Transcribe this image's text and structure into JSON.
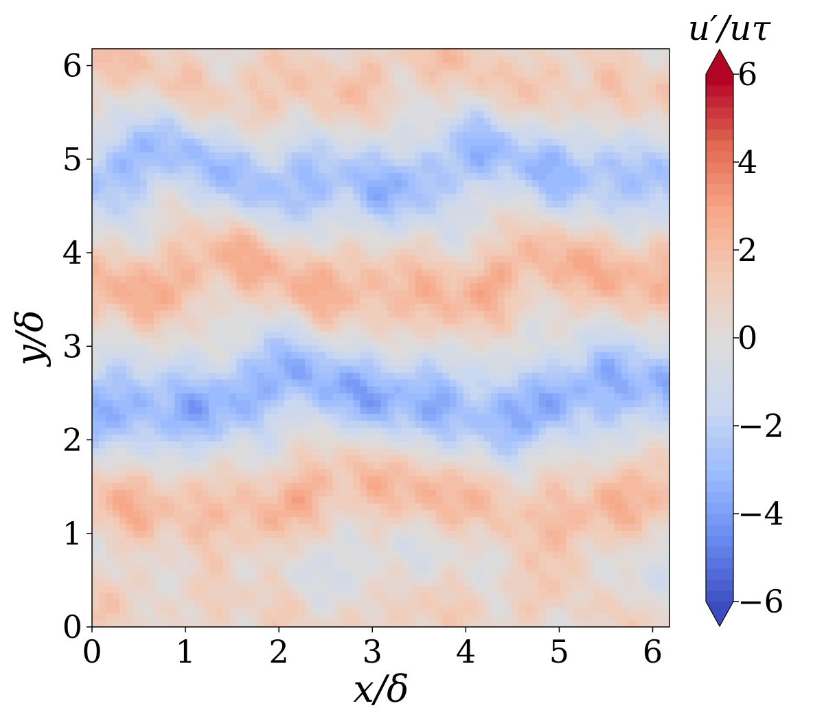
{
  "chart_data": {
    "type": "heatmap",
    "title": "",
    "xlabel": "x/δ",
    "ylabel": "y/δ",
    "xlim": [
      0,
      6.18
    ],
    "ylim": [
      0,
      6.18
    ],
    "xticks": [
      0,
      1,
      2,
      3,
      4,
      5,
      6
    ],
    "yticks": [
      0,
      1,
      2,
      3,
      4,
      5,
      6
    ],
    "colormap": "coolwarm",
    "colorbar": {
      "title": "u′/uτ",
      "range": [
        -6,
        6
      ],
      "ticks": [
        -6,
        -4,
        -2,
        0,
        2,
        4,
        6
      ],
      "tick_labels": [
        "−6",
        "−4",
        "−2",
        "0",
        "2",
        "4",
        "6"
      ],
      "extend": "both",
      "colors": [
        "#3b4cc0",
        "#6788ee",
        "#9abbff",
        "#c9d7f0",
        "#dddcdc",
        "#f2cbb7",
        "#f7a889",
        "#e26952",
        "#b40426"
      ]
    },
    "field": {
      "description_bands": [
        {
          "y": 0.2,
          "value": 1.2
        },
        {
          "y": 0.7,
          "value": -0.6
        },
        {
          "y": 1.35,
          "value": 2.3
        },
        {
          "y": 2.45,
          "value": -3.3
        },
        {
          "y": 3.7,
          "value": 2.4
        },
        {
          "y": 4.85,
          "value": -2.8
        },
        {
          "y": 5.85,
          "value": 1.6
        }
      ]
    }
  }
}
